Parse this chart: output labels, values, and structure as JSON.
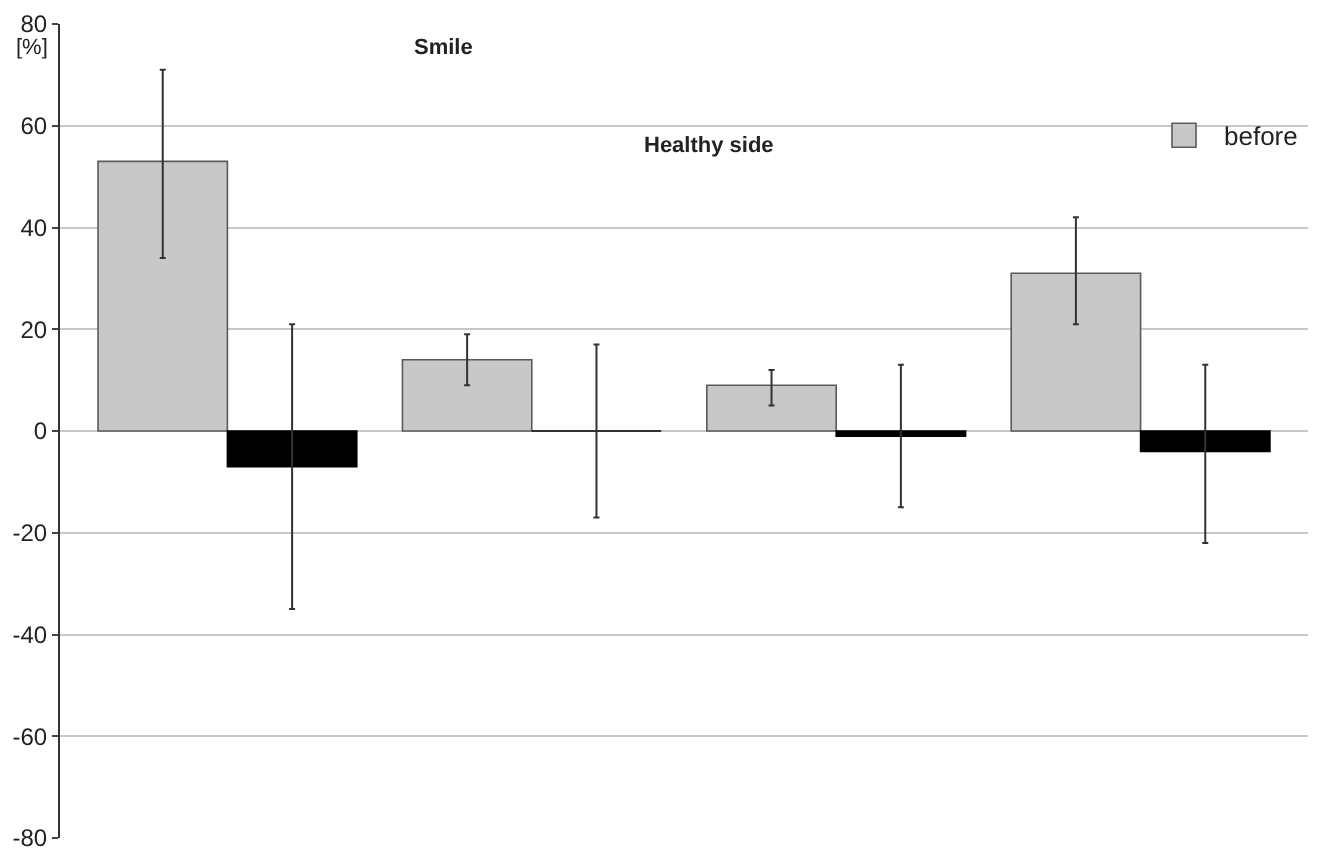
{
  "chart_data": {
    "type": "bar",
    "ylabel": "[%]",
    "annotations": [
      "Smile",
      "Healthy side"
    ],
    "categories": [
      null,
      null,
      null,
      null
    ],
    "series": [
      {
        "name": "before",
        "color": "#c8c8c8",
        "values": [
          53,
          14,
          9,
          31
        ],
        "errors": [
          [
            34,
            71
          ],
          [
            9,
            19
          ],
          [
            5,
            12
          ],
          [
            21,
            42
          ]
        ]
      },
      {
        "color": "#000000",
        "values": [
          -7,
          0,
          -1,
          -4
        ],
        "errors": [
          [
            -35,
            21
          ],
          [
            -17,
            17
          ],
          [
            -15,
            13
          ],
          [
            -22,
            13
          ]
        ]
      }
    ],
    "ylim": [
      -80,
      80
    ],
    "yticks": [
      -80,
      -60,
      -40,
      -20,
      0,
      20,
      40,
      60,
      80
    ],
    "grid": "y",
    "legend": "top right"
  }
}
